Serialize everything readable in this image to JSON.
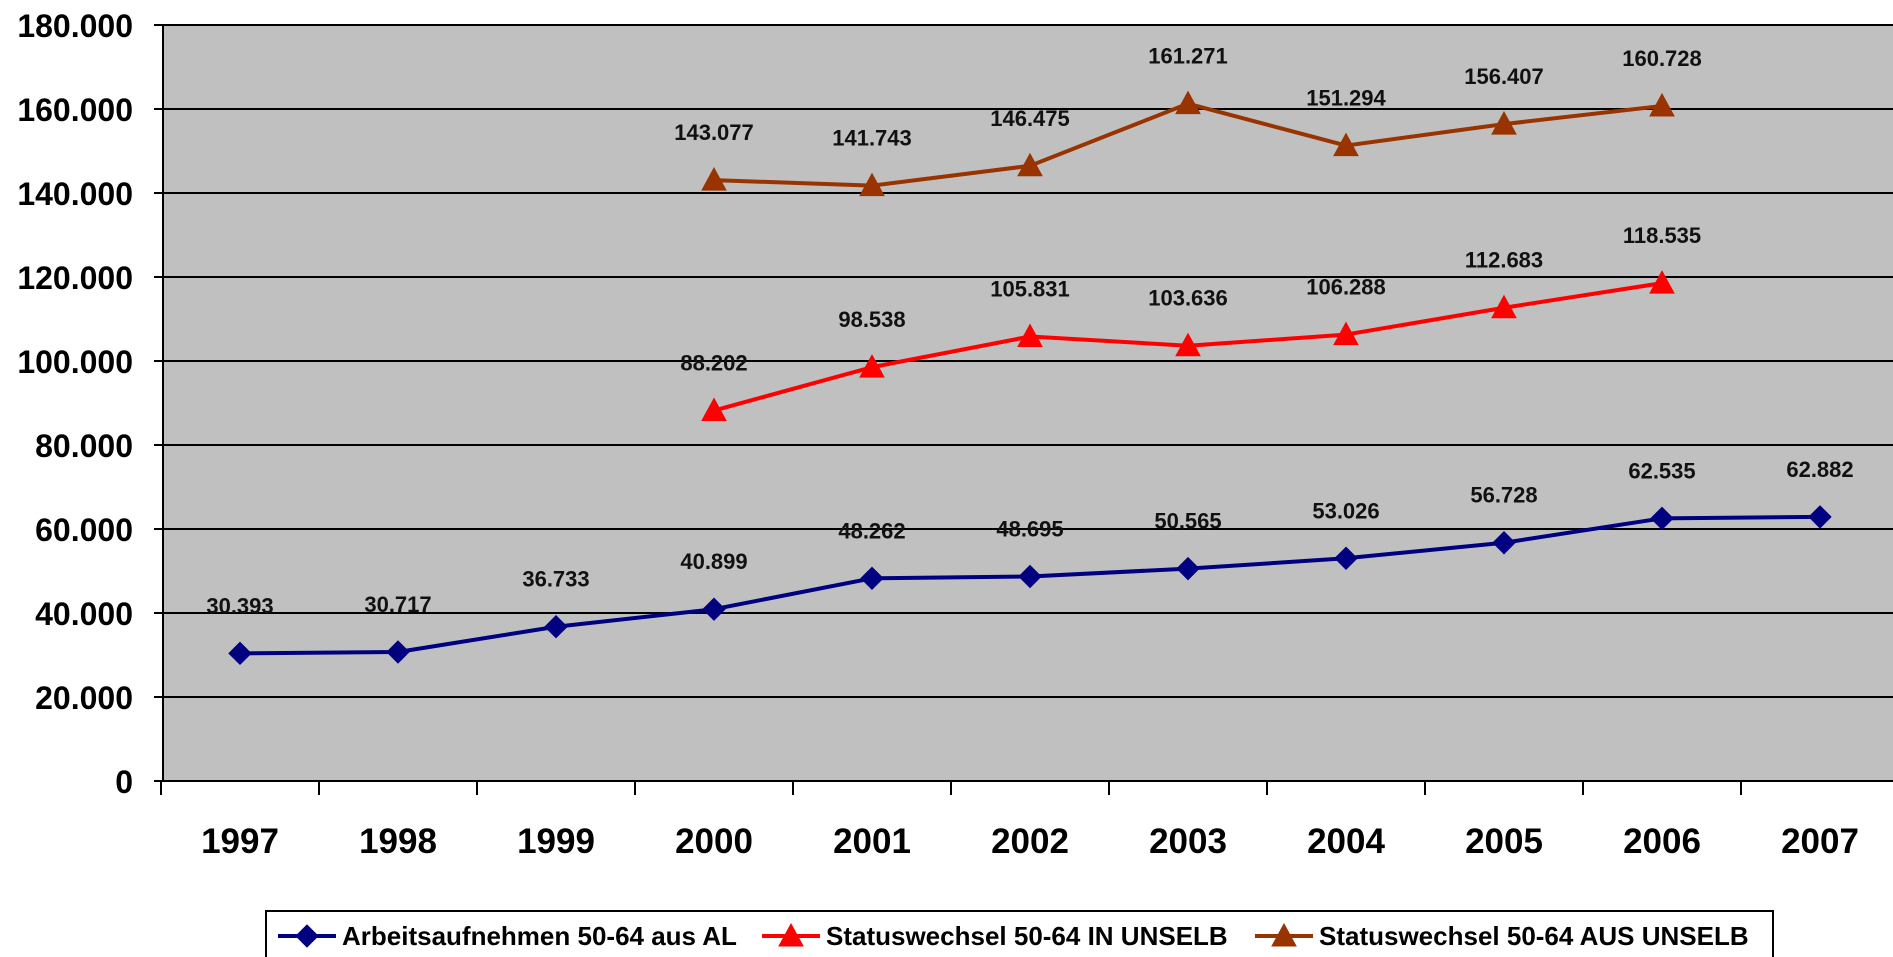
{
  "chart_data": {
    "type": "line",
    "title": "",
    "xlabel": "",
    "ylabel": "",
    "categories": [
      "1997",
      "1998",
      "1999",
      "2000",
      "2001",
      "2002",
      "2003",
      "2004",
      "2005",
      "2006",
      "2007"
    ],
    "ylim": [
      0,
      180000
    ],
    "y_ticks": [
      0,
      20000,
      40000,
      60000,
      80000,
      100000,
      120000,
      140000,
      160000,
      180000
    ],
    "y_tick_labels": [
      "0",
      "20.000",
      "40.000",
      "60.000",
      "80.000",
      "100.000",
      "120.000",
      "140.000",
      "160.000",
      "180.000"
    ],
    "grid": true,
    "legend_position": "bottom",
    "plot_background": "#c0c0c0",
    "series": [
      {
        "name": "Arbeitsaufnehmen 50-64 aus AL",
        "color": "#000080",
        "marker": "diamond",
        "values": [
          30393,
          30717,
          36733,
          40899,
          48262,
          48695,
          50565,
          53026,
          56728,
          62535,
          62882
        ],
        "labels": [
          "30.393",
          "30.717",
          "36.733",
          "40.899",
          "48.262",
          "48.695",
          "50.565",
          "53.026",
          "56.728",
          "62.535",
          "62.882"
        ]
      },
      {
        "name": "Statuswechsel 50-64 IN UNSELB",
        "color": "#ff0000",
        "marker": "triangle",
        "values": [
          null,
          null,
          null,
          88202,
          98538,
          105831,
          103636,
          106288,
          112683,
          118535,
          null
        ],
        "labels": [
          null,
          null,
          null,
          "88.202",
          "98.538",
          "105.831",
          "103.636",
          "106.288",
          "112.683",
          "118.535",
          null
        ]
      },
      {
        "name": "Statuswechsel 50-64 AUS UNSELB",
        "color": "#993300",
        "marker": "triangle",
        "values": [
          null,
          null,
          null,
          143077,
          141743,
          146475,
          161271,
          151294,
          156407,
          160728,
          null
        ],
        "labels": [
          null,
          null,
          null,
          "143.077",
          "141.743",
          "146.475",
          "161.271",
          "151.294",
          "156.407",
          "160.728",
          null
        ]
      }
    ]
  }
}
